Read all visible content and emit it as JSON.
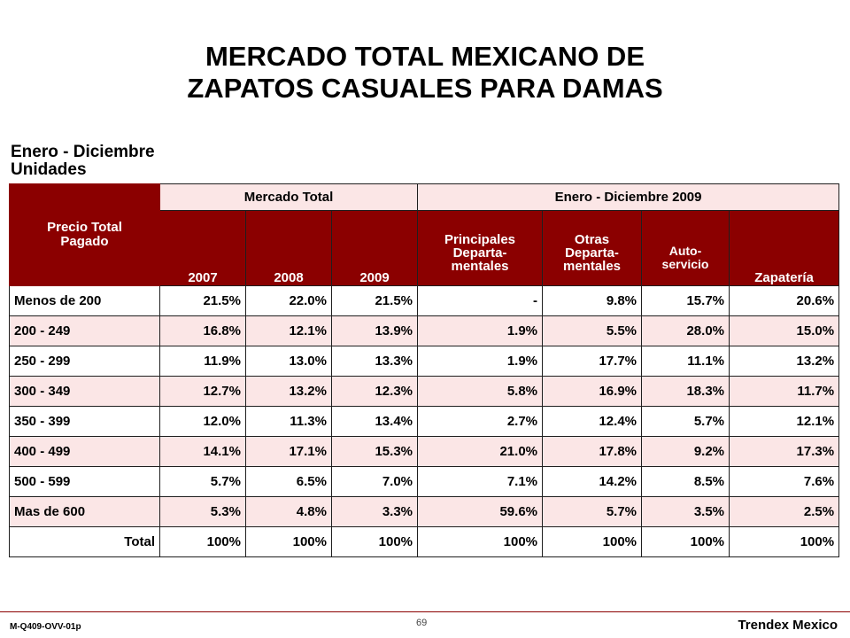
{
  "title_line1": "MERCADO TOTAL MEXICANO DE",
  "title_line2": "ZAPATOS CASUALES PARA DAMAS",
  "subtitle_line1": "Enero - Diciembre",
  "subtitle_line2": "Unidades",
  "table": {
    "group_headers": {
      "mercado_total": "Mercado Total",
      "period": "Enero - Diciembre 2009"
    },
    "corner_header": "Precio Total Pagado",
    "columns": [
      "2007",
      "2008",
      "2009",
      "Principales Departa-mentales",
      "Otras Departa-mentales",
      "Auto-servicio",
      "Zapatería"
    ],
    "col_lines": {
      "principales": [
        "Principales",
        "Departa-",
        "mentales"
      ],
      "otras": [
        "Otras",
        "Departa-",
        "mentales"
      ],
      "auto": [
        "Auto-",
        "servicio"
      ]
    },
    "rows": [
      {
        "label": "Menos de 200",
        "values": [
          "21.5%",
          "22.0%",
          "21.5%",
          "-",
          "9.8%",
          "15.7%",
          "20.6%"
        ]
      },
      {
        "label": "200 - 249",
        "values": [
          "16.8%",
          "12.1%",
          "13.9%",
          "1.9%",
          "5.5%",
          "28.0%",
          "15.0%"
        ]
      },
      {
        "label": "250 - 299",
        "values": [
          "11.9%",
          "13.0%",
          "13.3%",
          "1.9%",
          "17.7%",
          "11.1%",
          "13.2%"
        ]
      },
      {
        "label": "300 - 349",
        "values": [
          "12.7%",
          "13.2%",
          "12.3%",
          "5.8%",
          "16.9%",
          "18.3%",
          "11.7%"
        ]
      },
      {
        "label": "350 - 399",
        "values": [
          "12.0%",
          "11.3%",
          "13.4%",
          "2.7%",
          "12.4%",
          "5.7%",
          "12.1%"
        ]
      },
      {
        "label": "400 - 499",
        "values": [
          "14.1%",
          "17.1%",
          "15.3%",
          "21.0%",
          "17.8%",
          "9.2%",
          "17.3%"
        ]
      },
      {
        "label": "500 - 599",
        "values": [
          "5.7%",
          "6.5%",
          "7.0%",
          "7.1%",
          "14.2%",
          "8.5%",
          "7.6%"
        ]
      },
      {
        "label": "Mas de 600",
        "values": [
          "5.3%",
          "4.8%",
          "3.3%",
          "59.6%",
          "5.7%",
          "3.5%",
          "2.5%"
        ]
      },
      {
        "label": "Total",
        "values": [
          "100%",
          "100%",
          "100%",
          "100%",
          "100%",
          "100%",
          "100%"
        ]
      }
    ]
  },
  "footer": {
    "code": "M-Q409-OVV-01p",
    "page": "69",
    "brand": "Trendex Mexico"
  },
  "colors": {
    "header_bg": "#8b0000",
    "band_bg": "#fbe6e6"
  }
}
